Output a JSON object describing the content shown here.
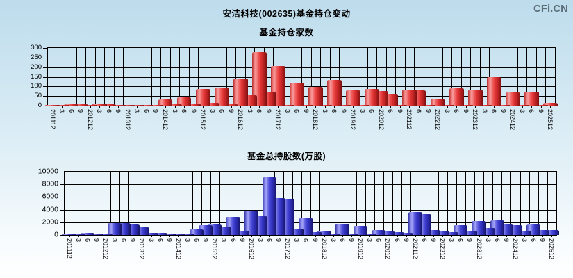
{
  "page": {
    "logo": "CFi.CN",
    "title": "安洁科技(002635)基金持仓变动"
  },
  "colors": {
    "background_top": "#bddcec",
    "background_bottom": "#ffffff",
    "grid": "#000000",
    "bar_red": "#e03434",
    "bar_blue": "#3a3acc",
    "logo_gray": "#5c6e77"
  },
  "chart_data": [
    {
      "type": "bar",
      "title": "基金持仓家数",
      "bar_color": "#e03434",
      "grid": true,
      "legend_position": "none",
      "ylim": [
        0,
        300
      ],
      "yticks": [
        0,
        50,
        100,
        150,
        200,
        250,
        300
      ],
      "categories": [
        "201112",
        "3",
        "6",
        "9",
        "201212",
        "3",
        "6",
        "9",
        "201312",
        "3",
        "6",
        "9",
        "201412",
        "3",
        "6",
        "9",
        "201512",
        "3",
        "6",
        "9",
        "201612",
        "3",
        "6",
        "9",
        "201712",
        "3",
        "6",
        "9",
        "201812",
        "3",
        "6",
        "9",
        "201912",
        "3",
        "6",
        "202012",
        "6",
        "9",
        "202112",
        "6",
        "9",
        "202212",
        "3",
        "6",
        "9",
        "202312",
        "3",
        "6",
        "9",
        "202412",
        "3",
        "6",
        "9",
        "202512"
      ],
      "values": [
        4,
        4,
        6,
        6,
        5,
        12,
        8,
        5,
        4,
        3,
        3,
        4,
        33,
        8,
        45,
        10,
        88,
        15,
        93,
        6,
        142,
        53,
        278,
        72,
        205,
        3,
        120,
        3,
        96,
        2,
        133,
        2,
        78,
        2,
        86,
        75,
        60,
        2,
        84,
        78,
        2,
        38,
        2,
        91,
        2,
        84,
        2,
        148,
        2,
        70,
        2,
        72,
        2,
        15
      ]
    },
    {
      "type": "bar",
      "title": "基金总持股数(万股)",
      "bar_color": "#3a3acc",
      "grid": true,
      "legend_position": "none",
      "ylim": [
        0,
        10000
      ],
      "yticks": [
        0,
        2000,
        4000,
        6000,
        8000,
        10000
      ],
      "categories": [
        "201112",
        "3",
        "6",
        "9",
        "201212",
        "3",
        "6",
        "9",
        "201312",
        "3",
        "6",
        "9",
        "201412",
        "3",
        "6",
        "9",
        "201512",
        "3",
        "6",
        "9",
        "201612",
        "3",
        "6",
        "9",
        "201712",
        "3",
        "6",
        "9",
        "201812",
        "3",
        "6",
        "9",
        "201912",
        "3",
        "6",
        "202012",
        "6",
        "9",
        "202112",
        "6",
        "9",
        "202212",
        "3",
        "6",
        "9",
        "202312",
        "3",
        "6",
        "9",
        "202412",
        "3",
        "6",
        "9",
        "202512"
      ],
      "values": [
        50,
        50,
        300,
        250,
        150,
        1900,
        1850,
        1600,
        1200,
        350,
        300,
        150,
        100,
        150,
        900,
        1500,
        1600,
        1350,
        2900,
        700,
        3900,
        2950,
        9100,
        5800,
        5700,
        1000,
        2600,
        450,
        650,
        100,
        1800,
        100,
        1400,
        80,
        800,
        550,
        420,
        300,
        3600,
        3300,
        800,
        700,
        400,
        1500,
        650,
        2200,
        1050,
        2300,
        1600,
        1500,
        700,
        1700,
        800,
        750
      ]
    }
  ]
}
